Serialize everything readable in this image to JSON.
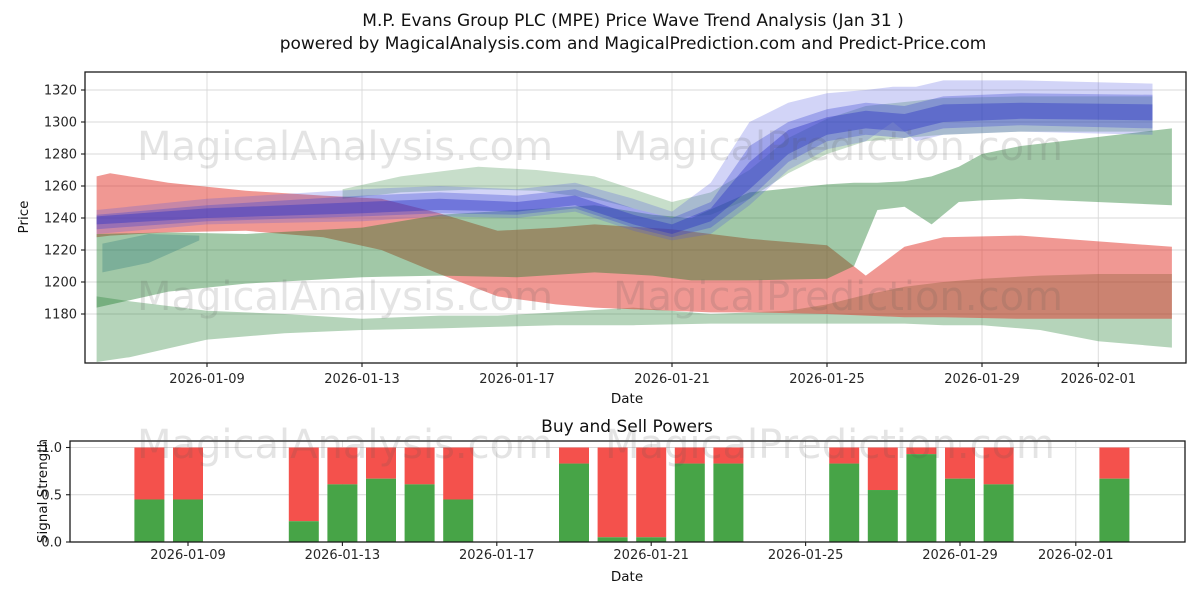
{
  "title": {
    "line1": "M.P. Evans Group PLC (MPE) Price Wave Trend Analysis (Jan 31 )",
    "line2": "powered by MagicalAnalysis.com and MagicalPrediction.com and Predict-Price.com"
  },
  "watermarks": {
    "analysis": "MagicalAnalysis.com",
    "prediction": "MagicalPrediction.com"
  },
  "price_chart_labels": {
    "ylabel": "Price",
    "xlabel": "Date"
  },
  "signal_chart_labels": {
    "title": "Buy and Sell Powers",
    "ylabel": "Signal Strength",
    "xlabel": "Date"
  },
  "colors": {
    "buy_bar": "#47a447",
    "sell_bar": "#f4514c",
    "grid": "#d9d9d9",
    "frame": "#1a1a1a",
    "tick_text": "#262626"
  },
  "chart_data": [
    {
      "type": "area",
      "title": "M.P. Evans Group PLC (MPE) Price Wave Trend Analysis (Jan 31 )",
      "xlabel": "Date",
      "ylabel": "Price",
      "ylim": [
        1149,
        1331
      ],
      "yticks": [
        1180,
        1200,
        1220,
        1240,
        1260,
        1280,
        1300,
        1320
      ],
      "xticks": [
        "2026-01-09",
        "2026-01-13",
        "2026-01-17",
        "2026-01-21",
        "2026-01-25",
        "2026-01-29",
        "2026-02-01"
      ],
      "x_origin_date": "2026-01-06",
      "grid": true,
      "legend": "none",
      "bands": [
        {
          "name": "green-lower-fan",
          "color": "rgba(30,125,45,0.33)",
          "t": [
            0.15,
            1,
            3,
            5,
            7,
            9,
            10.5,
            12,
            14,
            16,
            18,
            19,
            20,
            21,
            22,
            23,
            24.5,
            26,
            27.9
          ],
          "lo": [
            1150,
            1153,
            1164,
            1168,
            1170,
            1171,
            1172,
            1173,
            1173,
            1174,
            1174,
            1174,
            1174,
            1174,
            1173,
            1173,
            1170,
            1163,
            1159
          ],
          "hi": [
            1191,
            1188,
            1182,
            1180,
            1177,
            1179,
            1179,
            1181,
            1184,
            1180,
            1182,
            1186,
            1192,
            1197,
            1200,
            1202,
            1204,
            1205,
            1205
          ]
        },
        {
          "name": "red-fan",
          "color": "rgba(225,50,40,0.5)",
          "t": [
            0.15,
            0.5,
            2,
            4,
            6,
            7.5,
            9,
            10.5,
            12,
            13,
            15,
            16,
            17,
            19,
            20,
            21,
            22,
            24,
            27.9
          ],
          "lo": [
            1228,
            1229,
            1231,
            1232,
            1228,
            1220,
            1205,
            1191,
            1186,
            1184,
            1182,
            1181,
            1181,
            1180,
            1179,
            1178,
            1178,
            1177,
            1177
          ],
          "hi": [
            1266,
            1268,
            1262,
            1257,
            1254,
            1252,
            1243,
            1232,
            1234,
            1236,
            1233,
            1230,
            1227,
            1223,
            1204,
            1222,
            1228,
            1229,
            1222
          ]
        },
        {
          "name": "green-mid-fan",
          "color": "rgba(30,125,45,0.42)",
          "t": [
            0.15,
            2,
            4,
            7,
            9,
            11,
            13,
            14.5,
            15.5,
            17,
            19,
            19.7,
            20.3,
            21,
            21.7,
            22.4,
            23,
            24,
            27.9
          ],
          "lo": [
            1184,
            1194,
            1199,
            1203,
            1204,
            1203,
            1206,
            1204,
            1201,
            1201,
            1202,
            1210,
            1245,
            1247,
            1236,
            1250,
            1251,
            1252,
            1248
          ],
          "hi": [
            1230,
            1231,
            1230,
            1234,
            1242,
            1245,
            1248,
            1242,
            1240,
            1256,
            1261,
            1262,
            1262,
            1263,
            1266,
            1272,
            1280,
            1285,
            1296
          ]
        },
        {
          "name": "green-upper-fan",
          "color": "rgba(30,125,45,0.25)",
          "t": [
            6.5,
            8,
            10,
            11.5,
            13,
            14,
            15,
            16,
            17,
            18,
            19,
            20,
            22,
            24,
            27.4
          ],
          "lo": [
            1252,
            1256,
            1258,
            1257,
            1252,
            1246,
            1240,
            1242,
            1252,
            1268,
            1280,
            1288,
            1292,
            1294,
            1294
          ],
          "hi": [
            1258,
            1266,
            1272,
            1270,
            1266,
            1258,
            1250,
            1256,
            1270,
            1290,
            1302,
            1310,
            1315,
            1316,
            1316
          ]
        },
        {
          "name": "teal-wedge",
          "color": "rgba(30,110,120,0.28)",
          "t": [
            0.3,
            1.5,
            2.8
          ],
          "lo": [
            1206,
            1212,
            1226
          ],
          "hi": [
            1224,
            1230,
            1229
          ]
        },
        {
          "name": "blue-wide-fan",
          "color": "rgba(75,85,225,0.25)",
          "t": [
            0.15,
            3,
            7,
            9,
            11,
            12.5,
            14,
            15,
            16,
            17,
            18,
            19,
            20,
            20.7,
            21.3,
            22,
            24,
            27.4
          ],
          "lo": [
            1230,
            1236,
            1238,
            1241,
            1240,
            1244,
            1232,
            1226,
            1230,
            1248,
            1270,
            1283,
            1288,
            1300,
            1288,
            1292,
            1294,
            1292
          ],
          "hi": [
            1245,
            1252,
            1258,
            1260,
            1258,
            1262,
            1252,
            1244,
            1262,
            1300,
            1312,
            1318,
            1320,
            1322,
            1322,
            1326,
            1326,
            1324
          ]
        },
        {
          "name": "blue-mid-fan",
          "color": "rgba(55,65,210,0.32)",
          "t": [
            0.15,
            3,
            7,
            9,
            11,
            12.5,
            14,
            15,
            16,
            17,
            18,
            19,
            20,
            21,
            22,
            24,
            27.4
          ],
          "lo": [
            1233,
            1238,
            1241,
            1243,
            1242,
            1246,
            1234,
            1228,
            1234,
            1252,
            1275,
            1288,
            1292,
            1290,
            1296,
            1298,
            1296
          ],
          "hi": [
            1242,
            1248,
            1254,
            1256,
            1254,
            1258,
            1246,
            1240,
            1250,
            1285,
            1300,
            1308,
            1312,
            1310,
            1316,
            1318,
            1317
          ]
        },
        {
          "name": "blue-core-fan",
          "color": "rgba(40,48,195,0.40)",
          "t": [
            0.15,
            3,
            7,
            9,
            11,
            12.5,
            14,
            15,
            16,
            17,
            18,
            19,
            20,
            21,
            22,
            24,
            27.4
          ],
          "lo": [
            1236,
            1240,
            1243,
            1245,
            1244,
            1248,
            1236,
            1230,
            1238,
            1258,
            1280,
            1292,
            1296,
            1294,
            1300,
            1302,
            1301
          ],
          "hi": [
            1241,
            1246,
            1250,
            1252,
            1250,
            1254,
            1242,
            1236,
            1246,
            1275,
            1295,
            1303,
            1307,
            1305,
            1311,
            1312,
            1311
          ]
        }
      ]
    },
    {
      "type": "bar",
      "title": "Buy and Sell Powers",
      "xlabel": "Date",
      "ylabel": "Signal Strength",
      "ylim": [
        0,
        1.07
      ],
      "yticks": [
        "0.0",
        "0.5",
        "1.0"
      ],
      "xticks": [
        "2026-01-09",
        "2026-01-13",
        "2026-01-17",
        "2026-01-21",
        "2026-01-25",
        "2026-01-29",
        "2026-02-01"
      ],
      "x_origin_date": "2026-01-06",
      "stacked": true,
      "categories": [
        "2026-01-08",
        "2026-01-09",
        "2026-01-12",
        "2026-01-13",
        "2026-01-14",
        "2026-01-15",
        "2026-01-16",
        "2026-01-19",
        "2026-01-20",
        "2026-01-21",
        "2026-01-22",
        "2026-01-23",
        "2026-01-26",
        "2026-01-27",
        "2026-01-28",
        "2026-01-29",
        "2026-01-30",
        "2026-02-02"
      ],
      "series": [
        {
          "name": "Buy",
          "color": "#47a447",
          "values": [
            0.45,
            0.45,
            0.22,
            0.61,
            0.67,
            0.61,
            0.45,
            0.83,
            0.05,
            0.05,
            0.83,
            0.83,
            0.83,
            0.55,
            0.93,
            0.67,
            0.61,
            0.67
          ]
        },
        {
          "name": "Sell",
          "color": "#f4514c",
          "values": [
            0.55,
            0.55,
            0.78,
            0.39,
            0.33,
            0.39,
            0.55,
            0.17,
            0.95,
            0.95,
            0.17,
            0.17,
            0.17,
            0.45,
            0.07,
            0.33,
            0.39,
            0.33
          ]
        }
      ]
    }
  ]
}
